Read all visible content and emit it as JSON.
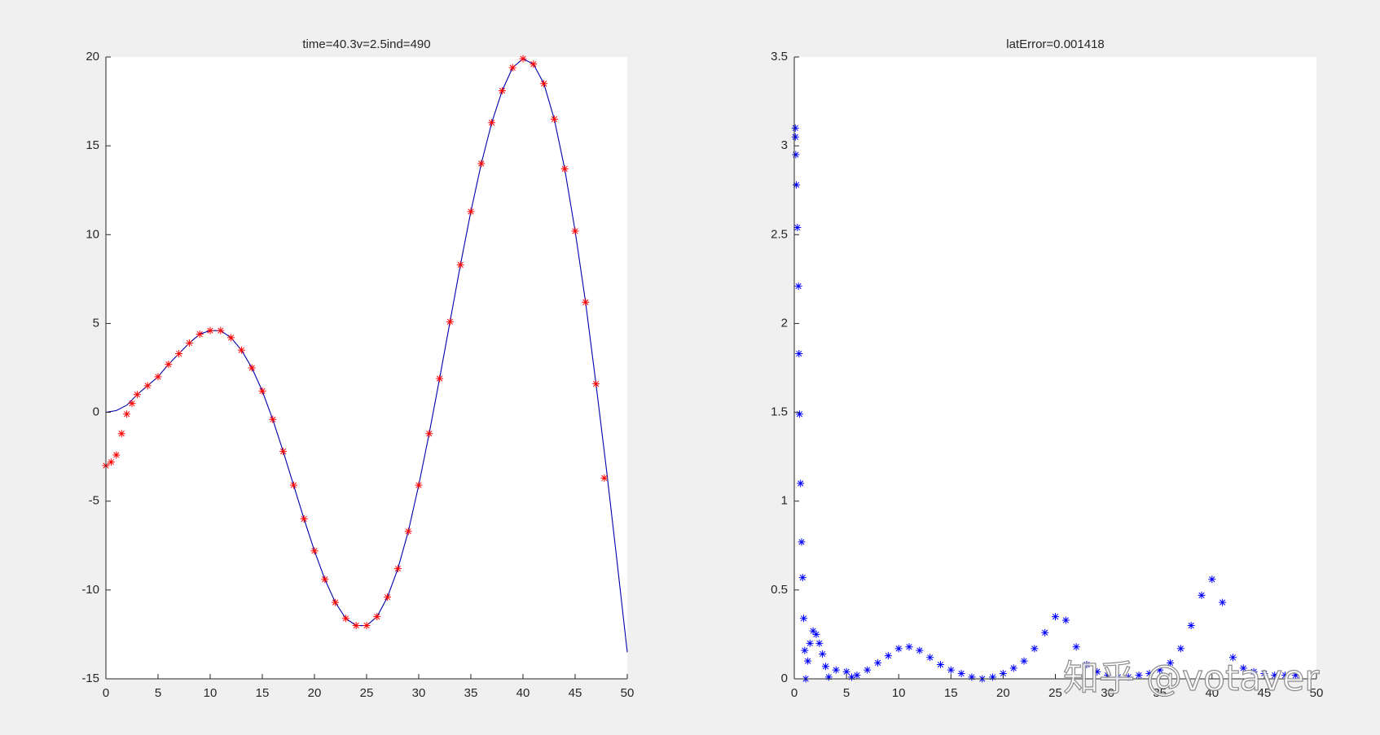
{
  "chart_data": [
    {
      "type": "line",
      "title": "time=40.3v=2.5ind=490",
      "xlim": [
        0,
        50
      ],
      "xticks": [
        0,
        5,
        10,
        15,
        20,
        25,
        30,
        35,
        40,
        45,
        50
      ],
      "ylim": [
        -15,
        20
      ],
      "yticks": [
        -15,
        -10,
        -5,
        0,
        5,
        10,
        15,
        20
      ],
      "series": [
        {
          "color": "#0000aa",
          "marker": "none",
          "x": [
            0,
            1,
            2,
            3,
            4,
            5,
            6,
            7,
            8,
            9,
            10,
            11,
            12,
            13,
            14,
            15,
            16,
            17,
            18,
            19,
            20,
            21,
            22,
            23,
            24,
            25,
            26,
            27,
            28,
            29,
            30,
            31,
            32,
            33,
            34,
            35,
            36,
            37,
            38,
            39,
            40,
            41,
            42,
            43,
            44,
            45,
            46,
            47,
            48,
            49,
            50
          ],
          "values": [
            0,
            0.1,
            0.4,
            1.0,
            1.5,
            2.0,
            2.7,
            3.3,
            3.9,
            4.4,
            4.6,
            4.6,
            4.2,
            3.5,
            2.5,
            1.2,
            -0.4,
            -2.2,
            -4.1,
            -6.0,
            -7.8,
            -9.4,
            -10.7,
            -11.6,
            -12.0,
            -12.0,
            -11.5,
            -10.4,
            -8.8,
            -6.7,
            -4.1,
            -1.2,
            1.9,
            5.1,
            8.3,
            11.3,
            14.0,
            16.3,
            18.1,
            19.4,
            19.9,
            19.6,
            18.5,
            16.5,
            13.7,
            10.2,
            6.2,
            1.6,
            -3.2,
            -8.3,
            -13.5
          ]
        },
        {
          "color": "#ff0000",
          "marker": "*",
          "x": [
            0,
            0.5,
            1,
            1.5,
            2,
            2.5,
            3,
            4,
            5,
            6,
            7,
            8,
            9,
            10,
            11,
            12,
            13,
            14,
            15,
            16,
            17,
            18,
            19,
            20,
            21,
            22,
            23,
            24,
            25,
            26,
            27,
            28,
            29,
            30,
            31,
            32,
            33,
            34,
            35,
            36,
            37,
            38,
            39,
            40,
            41,
            42,
            43,
            44,
            45,
            46,
            47,
            47.8
          ],
          "values": [
            -3.0,
            -2.8,
            -2.4,
            -1.2,
            -0.1,
            0.5,
            1.0,
            1.5,
            2.0,
            2.7,
            3.3,
            3.9,
            4.4,
            4.6,
            4.6,
            4.2,
            3.5,
            2.5,
            1.2,
            -0.4,
            -2.2,
            -4.1,
            -6.0,
            -7.8,
            -9.4,
            -10.7,
            -11.6,
            -12.0,
            -12.0,
            -11.5,
            -10.4,
            -8.8,
            -6.7,
            -4.1,
            -1.2,
            1.9,
            5.1,
            8.3,
            11.3,
            14.0,
            16.3,
            18.1,
            19.4,
            19.9,
            19.6,
            18.5,
            16.5,
            13.7,
            10.2,
            6.2,
            1.6,
            -3.7
          ]
        }
      ]
    },
    {
      "type": "scatter",
      "title": "latError=0.001418",
      "xlim": [
        0,
        50
      ],
      "xticks": [
        0,
        5,
        10,
        15,
        20,
        25,
        30,
        35,
        40,
        45,
        50
      ],
      "ylim": [
        0,
        3.5
      ],
      "yticks": [
        0,
        0.5,
        1,
        1.5,
        2,
        2.5,
        3,
        3.5
      ],
      "series": [
        {
          "color": "#0000ff",
          "marker": "*",
          "x": [
            0.1,
            0.1,
            0.15,
            0.2,
            0.3,
            0.4,
            0.45,
            0.5,
            0.6,
            0.7,
            0.8,
            0.9,
            1.0,
            1.1,
            1.3,
            1.5,
            1.8,
            2.1,
            2.4,
            2.7,
            3.0,
            3.3,
            4,
            5,
            5.5,
            6,
            7,
            8,
            9,
            10,
            11,
            12,
            13,
            14,
            15,
            16,
            17,
            18,
            19,
            20,
            21,
            22,
            23,
            24,
            25,
            26,
            27,
            28,
            29,
            30,
            31,
            32,
            33,
            34,
            35,
            36,
            37,
            38,
            39,
            40,
            41,
            42,
            43,
            44,
            45,
            46,
            47,
            48
          ],
          "values": [
            3.1,
            3.05,
            2.95,
            2.78,
            2.54,
            2.21,
            1.83,
            1.49,
            1.1,
            0.77,
            0.57,
            0.34,
            0.16,
            0.0,
            0.1,
            0.2,
            0.27,
            0.25,
            0.2,
            0.14,
            0.07,
            0.01,
            0.05,
            0.04,
            0.01,
            0.02,
            0.05,
            0.09,
            0.13,
            0.17,
            0.18,
            0.16,
            0.12,
            0.08,
            0.05,
            0.03,
            0.01,
            0.0,
            0.01,
            0.03,
            0.06,
            0.1,
            0.17,
            0.26,
            0.35,
            0.33,
            0.18,
            0.08,
            0.04,
            0.02,
            0.01,
            0.01,
            0.02,
            0.03,
            0.05,
            0.09,
            0.17,
            0.3,
            0.47,
            0.56,
            0.43,
            0.12,
            0.06,
            0.04,
            0.03,
            0.02,
            0.02,
            0.02
          ]
        }
      ]
    }
  ],
  "watermark": "知乎 @votaver"
}
